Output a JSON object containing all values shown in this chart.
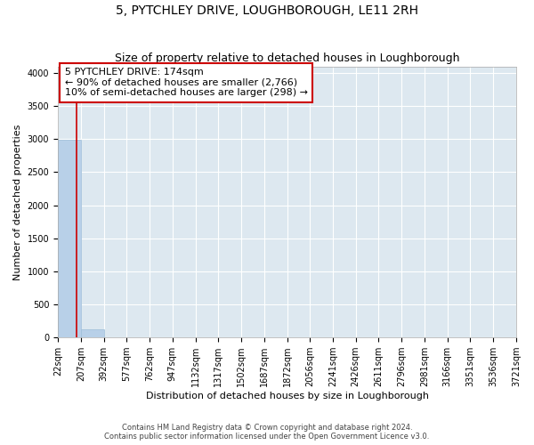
{
  "title": "5, PYTCHLEY DRIVE, LOUGHBOROUGH, LE11 2RH",
  "subtitle": "Size of property relative to detached houses in Loughborough",
  "xlabel": "Distribution of detached houses by size in Loughborough",
  "ylabel": "Number of detached properties",
  "bar_labels": [
    "22sqm",
    "207sqm",
    "392sqm",
    "577sqm",
    "762sqm",
    "947sqm",
    "1132sqm",
    "1317sqm",
    "1502sqm",
    "1687sqm",
    "1872sqm",
    "2056sqm",
    "2241sqm",
    "2426sqm",
    "2611sqm",
    "2796sqm",
    "2981sqm",
    "3166sqm",
    "3351sqm",
    "3536sqm",
    "3721sqm"
  ],
  "bar_values": [
    2985,
    130,
    3,
    1,
    0,
    0,
    0,
    0,
    0,
    0,
    0,
    0,
    0,
    0,
    0,
    0,
    0,
    0,
    0,
    0,
    0
  ],
  "bar_color": "#b8d0e8",
  "bar_edge_color": "#9dbdd8",
  "ylim": [
    0,
    4100
  ],
  "yticks": [
    0,
    500,
    1000,
    1500,
    2000,
    2500,
    3000,
    3500,
    4000
  ],
  "annotation_line1": "5 PYTCHLEY DRIVE: 174sqm",
  "annotation_line2": "← 90% of detached houses are smaller (2,766)",
  "annotation_line3": "10% of semi-detached houses are larger (298) →",
  "vline_color": "#cc0000",
  "background_color": "#dde8f0",
  "grid_color": "#ffffff",
  "footer_line1": "Contains HM Land Registry data © Crown copyright and database right 2024.",
  "footer_line2": "Contains public sector information licensed under the Open Government Licence v3.0.",
  "title_fontsize": 10,
  "subtitle_fontsize": 9,
  "axis_fontsize": 8,
  "tick_fontsize": 7,
  "annot_fontsize": 8,
  "footer_fontsize": 6,
  "bin_edges": [
    22,
    207,
    392,
    577,
    762,
    947,
    1132,
    1317,
    1502,
    1687,
    1872,
    2056,
    2241,
    2426,
    2611,
    2796,
    2981,
    3166,
    3351,
    3536,
    3721
  ]
}
